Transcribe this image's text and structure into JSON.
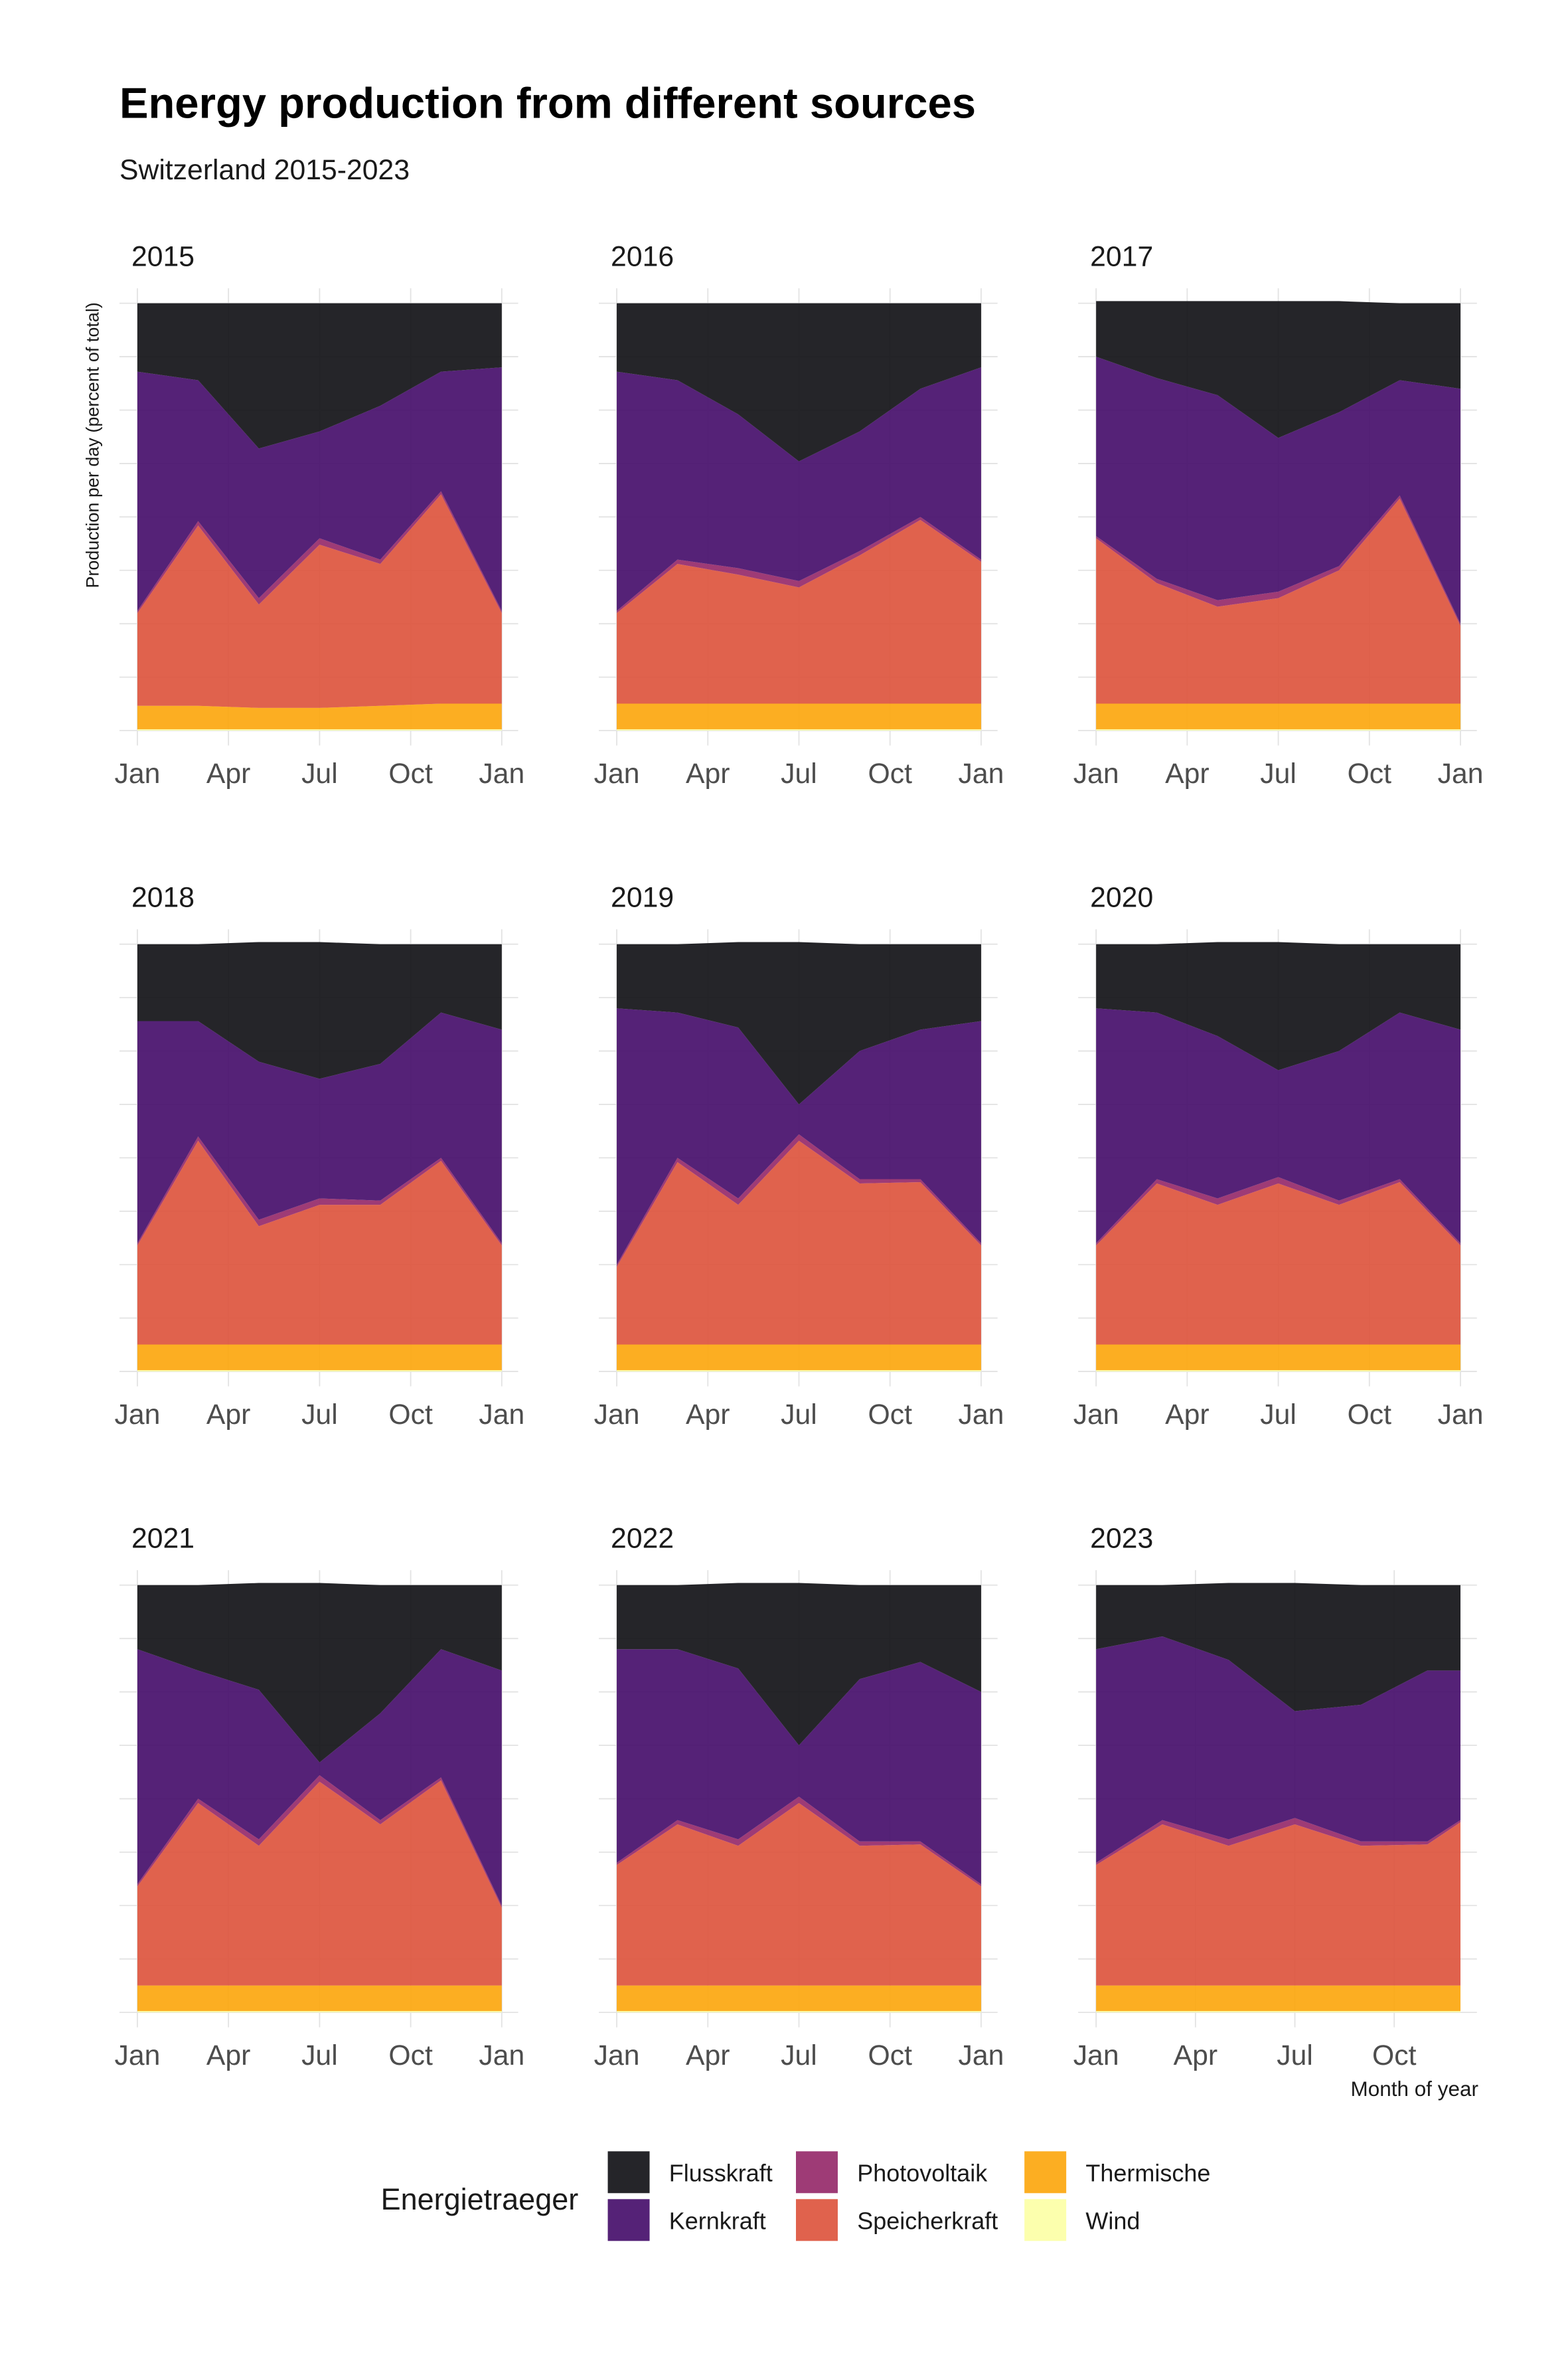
{
  "title": "Energy production from different sources",
  "subtitle": "Switzerland 2015-2023",
  "y_label": "Production per day (percent of total)",
  "x_label": "Month of year",
  "legend_title": "Energietraeger",
  "legend": [
    {
      "name": "Flusskraft",
      "color": "#0d0d12"
    },
    {
      "name": "Kernkraft",
      "color": "#420a68"
    },
    {
      "name": "Photovoltaik",
      "color": "#932667"
    },
    {
      "name": "Speicherkraft",
      "color": "#dd513a"
    },
    {
      "name": "Thermische",
      "color": "#fca50a"
    },
    {
      "name": "Wind",
      "color": "#fcffa4"
    }
  ],
  "chart_data": [
    {
      "type": "area",
      "title": "2015",
      "x": [
        1,
        3,
        5,
        7,
        9,
        11,
        13
      ],
      "xlim": [
        1,
        13
      ],
      "xticks": [
        {
          "value": 1,
          "label": "Jan"
        },
        {
          "value": 4,
          "label": "Apr"
        },
        {
          "value": 7,
          "label": "Jul"
        },
        {
          "value": 10,
          "label": "Oct"
        },
        {
          "value": 13,
          "label": "Jan"
        }
      ],
      "ylim": [
        0,
        100
      ],
      "yticks": [
        0,
        12.5,
        25,
        37.5,
        50,
        62.5,
        75,
        87.5,
        100
      ],
      "series": [
        {
          "values": [
            16,
            18,
            34,
            30,
            24,
            16,
            15
          ]
        },
        {
          "values": [
            56,
            33,
            35,
            25,
            36,
            28,
            57
          ]
        },
        {
          "values": [
            0.5,
            1.0,
            1.5,
            1.5,
            1.0,
            0.7,
            0.5
          ]
        },
        {
          "values": [
            21.7,
            42.2,
            24.2,
            38.2,
            33.2,
            49.0,
            21.2
          ]
        },
        {
          "values": [
            5.5,
            5.5,
            5.0,
            5.0,
            5.5,
            6.0,
            6.0
          ]
        },
        {
          "values": [
            0.3,
            0.3,
            0.3,
            0.3,
            0.3,
            0.3,
            0.3
          ]
        }
      ]
    },
    {
      "type": "area",
      "title": "2016",
      "x": [
        1,
        3,
        5,
        7,
        9,
        11,
        13
      ],
      "xlim": [
        1,
        13
      ],
      "xticks": [
        {
          "value": 1,
          "label": "Jan"
        },
        {
          "value": 4,
          "label": "Apr"
        },
        {
          "value": 7,
          "label": "Jul"
        },
        {
          "value": 10,
          "label": "Oct"
        },
        {
          "value": 13,
          "label": "Jan"
        }
      ],
      "ylim": [
        0,
        100
      ],
      "yticks": [
        0,
        12.5,
        25,
        37.5,
        50,
        62.5,
        75,
        87.5,
        100
      ],
      "series": [
        {
          "values": [
            16,
            18,
            26,
            37,
            30,
            20,
            15
          ]
        },
        {
          "values": [
            56,
            42,
            36,
            28,
            28,
            30,
            45
          ]
        },
        {
          "values": [
            0.5,
            1.0,
            1.5,
            1.5,
            1.0,
            0.7,
            0.5
          ]
        },
        {
          "values": [
            21.2,
            32.7,
            30.2,
            27.2,
            34.7,
            43.0,
            33.2
          ]
        },
        {
          "values": [
            6,
            6,
            6,
            6,
            6,
            6,
            6
          ]
        },
        {
          "values": [
            0.3,
            0.3,
            0.3,
            0.3,
            0.3,
            0.3,
            0.3
          ]
        }
      ]
    },
    {
      "type": "area",
      "title": "2017",
      "x": [
        1,
        3,
        5,
        7,
        9,
        11,
        13
      ],
      "xlim": [
        1,
        13
      ],
      "xticks": [
        {
          "value": 1,
          "label": "Jan"
        },
        {
          "value": 4,
          "label": "Apr"
        },
        {
          "value": 7,
          "label": "Jul"
        },
        {
          "value": 10,
          "label": "Oct"
        },
        {
          "value": 13,
          "label": "Jan"
        }
      ],
      "ylim": [
        0,
        100
      ],
      "yticks": [
        0,
        12.5,
        25,
        37.5,
        50,
        62.5,
        75,
        87.5,
        100
      ],
      "series": [
        {
          "values": [
            13,
            18,
            22,
            32,
            26,
            18,
            20
          ]
        },
        {
          "values": [
            42,
            47,
            48,
            36,
            36,
            27,
            55
          ]
        },
        {
          "values": [
            0.5,
            1.0,
            1.5,
            1.5,
            1.0,
            0.7,
            0.5
          ]
        },
        {
          "values": [
            38.7,
            28.2,
            22.7,
            24.7,
            31.2,
            48.0,
            18.2
          ]
        },
        {
          "values": [
            6,
            6,
            6,
            6,
            6,
            6,
            6
          ]
        },
        {
          "values": [
            0.3,
            0.3,
            0.3,
            0.3,
            0.3,
            0.3,
            0.3
          ]
        }
      ]
    },
    {
      "type": "area",
      "title": "2018",
      "x": [
        1,
        3,
        5,
        7,
        9,
        11,
        13
      ],
      "xlim": [
        1,
        13
      ],
      "xticks": [
        {
          "value": 1,
          "label": "Jan"
        },
        {
          "value": 4,
          "label": "Apr"
        },
        {
          "value": 7,
          "label": "Jul"
        },
        {
          "value": 10,
          "label": "Oct"
        },
        {
          "value": 13,
          "label": "Jan"
        }
      ],
      "ylim": [
        0,
        100
      ],
      "yticks": [
        0,
        12.5,
        25,
        37.5,
        50,
        62.5,
        75,
        87.5,
        100
      ],
      "series": [
        {
          "values": [
            18,
            18,
            28,
            32,
            28,
            16,
            20
          ]
        },
        {
          "values": [
            52,
            27,
            37,
            28,
            32,
            34,
            50
          ]
        },
        {
          "values": [
            0.5,
            1.0,
            1.5,
            1.5,
            1.0,
            0.7,
            0.5
          ]
        },
        {
          "values": [
            23.2,
            47.7,
            27.7,
            32.7,
            32.7,
            43.0,
            23.2
          ]
        },
        {
          "values": [
            6,
            6,
            6,
            6,
            6,
            6,
            6
          ]
        },
        {
          "values": [
            0.3,
            0.3,
            0.3,
            0.3,
            0.3,
            0.3,
            0.3
          ]
        }
      ]
    },
    {
      "type": "area",
      "title": "2019",
      "x": [
        1,
        3,
        5,
        7,
        9,
        11,
        13
      ],
      "xlim": [
        1,
        13
      ],
      "xticks": [
        {
          "value": 1,
          "label": "Jan"
        },
        {
          "value": 4,
          "label": "Apr"
        },
        {
          "value": 7,
          "label": "Jul"
        },
        {
          "value": 10,
          "label": "Oct"
        },
        {
          "value": 13,
          "label": "Jan"
        }
      ],
      "ylim": [
        0,
        100
      ],
      "yticks": [
        0,
        12.5,
        25,
        37.5,
        50,
        62.5,
        75,
        87.5,
        100
      ],
      "series": [
        {
          "values": [
            15,
            16,
            20,
            38,
            25,
            20,
            18
          ]
        },
        {
          "values": [
            60,
            34,
            40,
            7,
            30,
            35,
            52
          ]
        },
        {
          "values": [
            0.5,
            1.0,
            1.5,
            1.5,
            1.0,
            0.7,
            0.5
          ]
        },
        {
          "values": [
            18.2,
            42.7,
            32.7,
            47.7,
            37.7,
            38.0,
            23.2
          ]
        },
        {
          "values": [
            6,
            6,
            6,
            6,
            6,
            6,
            6
          ]
        },
        {
          "values": [
            0.3,
            0.3,
            0.3,
            0.3,
            0.3,
            0.3,
            0.3
          ]
        }
      ]
    },
    {
      "type": "area",
      "title": "2020",
      "x": [
        1,
        3,
        5,
        7,
        9,
        11,
        13
      ],
      "xlim": [
        1,
        13
      ],
      "xticks": [
        {
          "value": 1,
          "label": "Jan"
        },
        {
          "value": 4,
          "label": "Apr"
        },
        {
          "value": 7,
          "label": "Jul"
        },
        {
          "value": 10,
          "label": "Oct"
        },
        {
          "value": 13,
          "label": "Jan"
        }
      ],
      "ylim": [
        0,
        100
      ],
      "yticks": [
        0,
        12.5,
        25,
        37.5,
        50,
        62.5,
        75,
        87.5,
        100
      ],
      "series": [
        {
          "values": [
            15,
            16,
            22,
            30,
            25,
            16,
            20
          ]
        },
        {
          "values": [
            55,
            39,
            38,
            25,
            35,
            39,
            50
          ]
        },
        {
          "values": [
            0.5,
            1.0,
            1.5,
            1.5,
            1.0,
            0.7,
            0.5
          ]
        },
        {
          "values": [
            23.2,
            37.7,
            32.7,
            37.7,
            32.7,
            38.0,
            23.2
          ]
        },
        {
          "values": [
            6,
            6,
            6,
            6,
            6,
            6,
            6
          ]
        },
        {
          "values": [
            0.3,
            0.3,
            0.3,
            0.3,
            0.3,
            0.3,
            0.3
          ]
        }
      ]
    },
    {
      "type": "area",
      "title": "2021",
      "x": [
        1,
        3,
        5,
        7,
        9,
        11,
        13
      ],
      "xlim": [
        1,
        13
      ],
      "xticks": [
        {
          "value": 1,
          "label": "Jan"
        },
        {
          "value": 4,
          "label": "Apr"
        },
        {
          "value": 7,
          "label": "Jul"
        },
        {
          "value": 10,
          "label": "Oct"
        },
        {
          "value": 13,
          "label": "Jan"
        }
      ],
      "ylim": [
        0,
        100
      ],
      "yticks": [
        0,
        12.5,
        25,
        37.5,
        50,
        62.5,
        75,
        87.5,
        100
      ],
      "series": [
        {
          "values": [
            15,
            20,
            25,
            42,
            30,
            15,
            20
          ]
        },
        {
          "values": [
            55,
            30,
            35,
            3,
            25,
            30,
            55
          ]
        },
        {
          "values": [
            0.5,
            1.0,
            1.5,
            1.5,
            1.0,
            0.7,
            0.5
          ]
        },
        {
          "values": [
            23.2,
            42.7,
            32.7,
            47.7,
            37.7,
            48.0,
            18.2
          ]
        },
        {
          "values": [
            6,
            6,
            6,
            6,
            6,
            6,
            6
          ]
        },
        {
          "values": [
            0.3,
            0.3,
            0.3,
            0.3,
            0.3,
            0.3,
            0.3
          ]
        }
      ]
    },
    {
      "type": "area",
      "title": "2022",
      "x": [
        1,
        3,
        5,
        7,
        9,
        11,
        13
      ],
      "xlim": [
        1,
        13
      ],
      "xticks": [
        {
          "value": 1,
          "label": "Jan"
        },
        {
          "value": 4,
          "label": "Apr"
        },
        {
          "value": 7,
          "label": "Jul"
        },
        {
          "value": 10,
          "label": "Oct"
        },
        {
          "value": 13,
          "label": "Jan"
        }
      ],
      "ylim": [
        0,
        100
      ],
      "yticks": [
        0,
        12.5,
        25,
        37.5,
        50,
        62.5,
        75,
        87.5,
        100
      ],
      "series": [
        {
          "values": [
            15,
            15,
            20,
            38,
            22,
            18,
            25
          ]
        },
        {
          "values": [
            50,
            40,
            40,
            12,
            38,
            42,
            45
          ]
        },
        {
          "values": [
            0.5,
            1.0,
            1.5,
            1.5,
            1.0,
            0.7,
            0.5
          ]
        },
        {
          "values": [
            28.2,
            37.7,
            32.7,
            42.7,
            32.7,
            33.0,
            23.2
          ]
        },
        {
          "values": [
            6,
            6,
            6,
            6,
            6,
            6,
            6
          ]
        },
        {
          "values": [
            0.3,
            0.3,
            0.3,
            0.3,
            0.3,
            0.3,
            0.3
          ]
        }
      ]
    },
    {
      "type": "area",
      "title": "2023",
      "x": [
        1,
        3,
        5,
        7,
        9,
        11,
        12
      ],
      "xlim": [
        1,
        12
      ],
      "xticks": [
        {
          "value": 1,
          "label": "Jan"
        },
        {
          "value": 4,
          "label": "Apr"
        },
        {
          "value": 7,
          "label": "Jul"
        },
        {
          "value": 10,
          "label": "Oct"
        }
      ],
      "ylim": [
        0,
        100
      ],
      "yticks": [
        0,
        12.5,
        25,
        37.5,
        50,
        62.5,
        75,
        87.5,
        100
      ],
      "series": [
        {
          "values": [
            15,
            12,
            18,
            30,
            28,
            20,
            20
          ]
        },
        {
          "values": [
            50,
            43,
            42,
            25,
            32,
            40,
            35
          ]
        },
        {
          "values": [
            0.5,
            1.0,
            1.5,
            1.5,
            1.0,
            0.7,
            0.5
          ]
        },
        {
          "values": [
            28.2,
            37.7,
            32.7,
            37.7,
            32.7,
            33.0,
            38.2
          ]
        },
        {
          "values": [
            6,
            6,
            6,
            6,
            6,
            6,
            6
          ]
        },
        {
          "values": [
            0.3,
            0.3,
            0.3,
            0.3,
            0.3,
            0.3,
            0.3
          ]
        }
      ]
    }
  ]
}
